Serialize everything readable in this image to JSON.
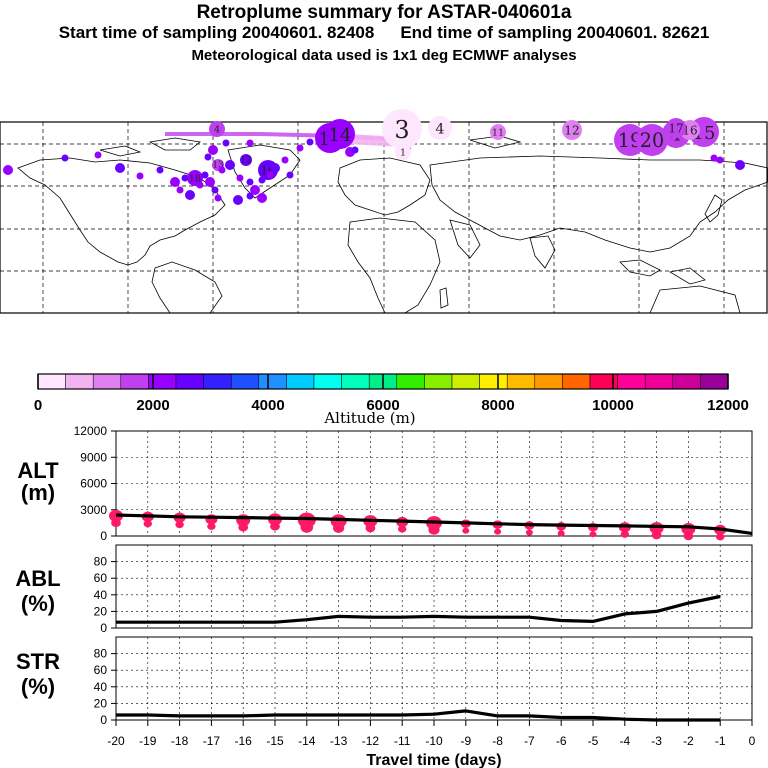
{
  "title": "Retroplume summary for ASTAR-040601a",
  "subtitle_start": "Start time of sampling 20040601. 82408",
  "subtitle_end": "End time of sampling 20040601. 82621",
  "met_line": "Meteorological data used is 1x1 deg ECMWF analyses",
  "colors": {
    "scale": [
      "#ffe6ff",
      "#f2b3f2",
      "#e080f0",
      "#c040f0",
      "#9900ff",
      "#6a00ff",
      "#3322ff",
      "#1e50ff",
      "#1e90ff",
      "#00ccff",
      "#00ffee",
      "#00ffbb",
      "#00ee88",
      "#33ee00",
      "#88ee00",
      "#ccee00",
      "#ffee00",
      "#ffbb00",
      "#ff9900",
      "#ff6600",
      "#ff0055",
      "#ff0099",
      "#ee0099",
      "#cc0099",
      "#990099"
    ],
    "marker": "#ff1a66",
    "line": "#000000"
  },
  "map": {
    "plume_labels": [
      {
        "label": "3",
        "alt": 200
      },
      {
        "label": "4",
        "alt": 100
      },
      {
        "label": "11",
        "alt": 1400
      },
      {
        "label": "12",
        "alt": 1400
      },
      {
        "label": "19",
        "alt": 1700
      },
      {
        "label": "20",
        "alt": 1700
      },
      {
        "label": "4",
        "alt": 1600
      },
      {
        "label": "15",
        "alt": 1500
      },
      {
        "label": "16",
        "alt": 1400
      },
      {
        "label": "17",
        "alt": 1700
      },
      {
        "label": "4",
        "alt": 1800
      },
      {
        "label": "13",
        "alt": 2300
      },
      {
        "label": "14",
        "alt": 2300
      },
      {
        "label": "18",
        "alt": 2000
      },
      {
        "label": "16",
        "alt": 2800
      },
      {
        "label": "12",
        "alt": 2500
      },
      {
        "label": "13",
        "alt": 1600
      },
      {
        "label": "1",
        "alt": 300
      }
    ]
  },
  "colorbar": {
    "ticks": [
      "0",
      "2000",
      "4000",
      "6000",
      "8000",
      "10000",
      "12000"
    ],
    "label": "Altitude (m)"
  },
  "chart_data": [
    {
      "type": "line",
      "name": "ALT",
      "ylabel_line1": "ALT",
      "ylabel_line2": "(m)",
      "ylim": [
        0,
        12000
      ],
      "yticks": [
        "12000",
        "9000",
        "6000",
        "3000",
        "0"
      ],
      "x": [
        -20,
        -19,
        -18,
        -17,
        -16,
        -15,
        -14,
        -13,
        -12,
        -11,
        -10,
        -9,
        -8,
        -7,
        -6,
        -5,
        -4,
        -3,
        -2,
        -1,
        0
      ],
      "values": [
        2400,
        2300,
        2200,
        2150,
        2100,
        2050,
        2000,
        1900,
        1800,
        1700,
        1600,
        1500,
        1400,
        1300,
        1250,
        1200,
        1150,
        1100,
        1050,
        800,
        300
      ],
      "markers": {
        "x": [
          -20,
          -19,
          -18,
          -17,
          -16,
          -15,
          -14,
          -13,
          -12,
          -11,
          -10,
          -9,
          -8,
          -7,
          -6,
          -5,
          -4,
          -3,
          -2,
          -1
        ],
        "values": [
          2300,
          2200,
          2100,
          1900,
          1800,
          1900,
          1800,
          1700,
          1700,
          1600,
          1500,
          1400,
          1300,
          1200,
          1100,
          1000,
          1000,
          900,
          800,
          700
        ]
      }
    },
    {
      "type": "line",
      "name": "ABL",
      "ylabel_line1": "ABL",
      "ylabel_line2": "(%)",
      "ylim": [
        0,
        100
      ],
      "yticks": [
        "80",
        "60",
        "40",
        "20",
        "0"
      ],
      "x": [
        -20,
        -19,
        -18,
        -17,
        -16,
        -15,
        -14,
        -13,
        -12,
        -11,
        -10,
        -9,
        -8,
        -7,
        -6,
        -5,
        -4,
        -3,
        -2,
        -1
      ],
      "values": [
        7,
        7,
        7,
        7,
        7,
        7,
        10,
        14,
        13,
        13,
        14,
        13,
        13,
        13,
        9,
        8,
        17,
        20,
        30,
        38
      ]
    },
    {
      "type": "line",
      "name": "STR",
      "ylabel_line1": "STR",
      "ylabel_line2": "(%)",
      "ylim": [
        0,
        100
      ],
      "yticks": [
        "80",
        "60",
        "40",
        "20",
        "0"
      ],
      "x": [
        -20,
        -19,
        -18,
        -17,
        -16,
        -15,
        -14,
        -13,
        -12,
        -11,
        -10,
        -9,
        -8,
        -7,
        -6,
        -5,
        -4,
        -3,
        -2,
        -1
      ],
      "values": [
        6,
        6,
        5,
        5,
        5,
        6,
        6,
        6,
        6,
        6,
        7,
        11,
        5,
        5,
        3,
        3,
        1,
        0,
        0,
        0
      ]
    }
  ],
  "x_axis": {
    "ticks": [
      "-20",
      "-19",
      "-18",
      "-17",
      "-16",
      "-15",
      "-14",
      "-13",
      "-12",
      "-11",
      "-10",
      "-9",
      "-8",
      "-7",
      "-6",
      "-5",
      "-4",
      "-3",
      "-2",
      "-1",
      "0"
    ],
    "label": "Travel time (days)"
  }
}
